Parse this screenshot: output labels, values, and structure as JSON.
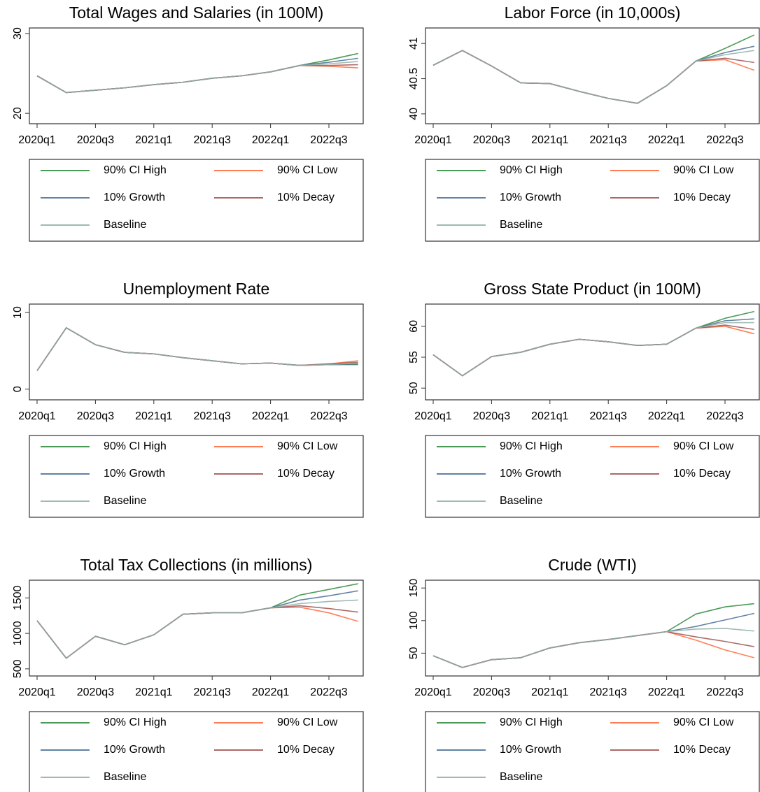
{
  "chart_data": [
    {
      "type": "line",
      "title": "Total Wages and Salaries (in 100M)",
      "categories": [
        "2020q1",
        null,
        "2020q3",
        null,
        "2021q1",
        null,
        "2021q3",
        null,
        "2022q1",
        null,
        "2022q3",
        null
      ],
      "ylim": [
        18.7,
        30.7
      ],
      "yticks": [
        20,
        30
      ],
      "series": [
        {
          "name": "90% CI High",
          "color": "#2e8b3c",
          "values": [
            24.7,
            22.6,
            22.9,
            23.2,
            23.6,
            23.9,
            24.4,
            24.7,
            25.2,
            26.0,
            26.7,
            27.5
          ]
        },
        {
          "name": "90% CI Low",
          "color": "#ff6a3d",
          "values": [
            24.7,
            22.6,
            22.9,
            23.2,
            23.6,
            23.9,
            24.4,
            24.7,
            25.2,
            26.0,
            25.9,
            25.7
          ]
        },
        {
          "name": "10% Growth",
          "color": "#4a6f94",
          "values": [
            24.7,
            22.6,
            22.9,
            23.2,
            23.6,
            23.9,
            24.4,
            24.7,
            25.2,
            26.0,
            26.4,
            26.9
          ]
        },
        {
          "name": "10% Decay",
          "color": "#a0524f",
          "values": [
            24.7,
            22.6,
            22.9,
            23.2,
            23.6,
            23.9,
            24.4,
            24.7,
            25.2,
            26.0,
            26.0,
            26.1
          ]
        },
        {
          "name": "Baseline",
          "color": "#8fb0a8",
          "values": [
            24.7,
            22.6,
            22.9,
            23.2,
            23.6,
            23.9,
            24.4,
            24.7,
            25.2,
            26.0,
            26.2,
            26.5
          ]
        }
      ]
    },
    {
      "type": "line",
      "title": "Labor Force (in 10,000s)",
      "categories": [
        "2020q1",
        null,
        "2020q3",
        null,
        "2021q1",
        null,
        "2021q3",
        null,
        "2022q1",
        null,
        "2022q3",
        null
      ],
      "ylim": [
        39.86,
        41.22
      ],
      "yticks": [
        40,
        40.5,
        41
      ],
      "series": [
        {
          "name": "90% CI High",
          "color": "#2e8b3c",
          "values": [
            40.69,
            40.9,
            40.68,
            40.44,
            40.43,
            40.32,
            40.22,
            40.15,
            40.4,
            40.75,
            40.93,
            41.12
          ]
        },
        {
          "name": "90% CI Low",
          "color": "#ff6a3d",
          "values": [
            40.69,
            40.9,
            40.68,
            40.44,
            40.43,
            40.32,
            40.22,
            40.15,
            40.4,
            40.75,
            40.77,
            40.62
          ]
        },
        {
          "name": "10% Growth",
          "color": "#4a6f94",
          "values": [
            40.69,
            40.9,
            40.68,
            40.44,
            40.43,
            40.32,
            40.22,
            40.15,
            40.4,
            40.75,
            40.87,
            40.96
          ]
        },
        {
          "name": "10% Decay",
          "color": "#a0524f",
          "values": [
            40.69,
            40.9,
            40.68,
            40.44,
            40.43,
            40.32,
            40.22,
            40.15,
            40.4,
            40.75,
            40.79,
            40.73
          ]
        },
        {
          "name": "Baseline",
          "color": "#8fb0a8",
          "values": [
            40.69,
            40.9,
            40.68,
            40.44,
            40.43,
            40.32,
            40.22,
            40.15,
            40.4,
            40.75,
            40.84,
            40.9
          ]
        }
      ]
    },
    {
      "type": "line",
      "title": "Unemployment Rate",
      "categories": [
        "2020q1",
        null,
        "2020q3",
        null,
        "2021q1",
        null,
        "2021q3",
        null,
        "2022q1",
        null,
        "2022q3",
        null
      ],
      "ylim": [
        -1.4,
        11.1
      ],
      "yticks": [
        0,
        10
      ],
      "series": [
        {
          "name": "90% CI High",
          "color": "#2e8b3c",
          "values": [
            2.4,
            8.0,
            5.8,
            4.8,
            4.6,
            4.1,
            3.7,
            3.3,
            3.4,
            3.1,
            3.2,
            3.2
          ]
        },
        {
          "name": "90% CI Low",
          "color": "#ff6a3d",
          "values": [
            2.4,
            8.0,
            5.8,
            4.8,
            4.6,
            4.1,
            3.7,
            3.3,
            3.4,
            3.1,
            3.3,
            3.7
          ]
        },
        {
          "name": "10% Growth",
          "color": "#4a6f94",
          "values": [
            2.4,
            8.0,
            5.8,
            4.8,
            4.6,
            4.1,
            3.7,
            3.3,
            3.4,
            3.1,
            3.2,
            3.3
          ]
        },
        {
          "name": "10% Decay",
          "color": "#a0524f",
          "values": [
            2.4,
            8.0,
            5.8,
            4.8,
            4.6,
            4.1,
            3.7,
            3.3,
            3.4,
            3.1,
            3.3,
            3.5
          ]
        },
        {
          "name": "Baseline",
          "color": "#8fb0a8",
          "values": [
            2.4,
            8.0,
            5.8,
            4.8,
            4.6,
            4.1,
            3.7,
            3.3,
            3.4,
            3.1,
            3.2,
            3.4
          ]
        }
      ]
    },
    {
      "type": "line",
      "title": "Gross State Product (in 100M)",
      "categories": [
        "2020q1",
        null,
        "2020q3",
        null,
        "2021q1",
        null,
        "2021q3",
        null,
        "2022q1",
        null,
        "2022q3",
        null
      ],
      "ylim": [
        48.1,
        63.6
      ],
      "yticks": [
        50,
        55,
        60
      ],
      "series": [
        {
          "name": "90% CI High",
          "color": "#2e8b3c",
          "values": [
            55.4,
            52.0,
            55.1,
            55.8,
            57.1,
            57.9,
            57.5,
            56.9,
            57.1,
            59.7,
            61.3,
            62.4
          ]
        },
        {
          "name": "90% CI Low",
          "color": "#ff6a3d",
          "values": [
            55.4,
            52.0,
            55.1,
            55.8,
            57.1,
            57.9,
            57.5,
            56.9,
            57.1,
            59.7,
            60.0,
            58.8
          ]
        },
        {
          "name": "10% Growth",
          "color": "#4a6f94",
          "values": [
            55.4,
            52.0,
            55.1,
            55.8,
            57.1,
            57.9,
            57.5,
            56.9,
            57.1,
            59.7,
            60.9,
            61.2
          ]
        },
        {
          "name": "10% Decay",
          "color": "#a0524f",
          "values": [
            55.4,
            52.0,
            55.1,
            55.8,
            57.1,
            57.9,
            57.5,
            56.9,
            57.1,
            59.7,
            60.2,
            59.5
          ]
        },
        {
          "name": "Baseline",
          "color": "#8fb0a8",
          "values": [
            55.4,
            52.0,
            55.1,
            55.8,
            57.1,
            57.9,
            57.5,
            56.9,
            57.1,
            59.7,
            60.6,
            60.6
          ]
        }
      ]
    },
    {
      "type": "line",
      "title": "Total Tax Collections (in millions)",
      "categories": [
        "2020q1",
        null,
        "2020q3",
        null,
        "2021q1",
        null,
        "2021q3",
        null,
        "2022q1",
        null,
        "2022q3",
        null
      ],
      "ylim": [
        400,
        1750
      ],
      "yticks": [
        500,
        1000,
        1500
      ],
      "series": [
        {
          "name": "90% CI High",
          "color": "#2e8b3c",
          "values": [
            1180,
            650,
            960,
            840,
            980,
            1270,
            1290,
            1290,
            1360,
            1540,
            1620,
            1700
          ]
        },
        {
          "name": "90% CI Low",
          "color": "#ff6a3d",
          "values": [
            1180,
            650,
            960,
            840,
            980,
            1270,
            1290,
            1290,
            1360,
            1370,
            1290,
            1170
          ]
        },
        {
          "name": "10% Growth",
          "color": "#4a6f94",
          "values": [
            1180,
            650,
            960,
            840,
            980,
            1270,
            1290,
            1290,
            1360,
            1470,
            1530,
            1600
          ]
        },
        {
          "name": "10% Decay",
          "color": "#a0524f",
          "values": [
            1180,
            650,
            960,
            840,
            980,
            1270,
            1290,
            1290,
            1360,
            1390,
            1350,
            1300
          ]
        },
        {
          "name": "Baseline",
          "color": "#8fb0a8",
          "values": [
            1180,
            650,
            960,
            840,
            980,
            1270,
            1290,
            1290,
            1360,
            1420,
            1450,
            1470
          ]
        }
      ]
    },
    {
      "type": "line",
      "title": "Crude (WTI)",
      "categories": [
        "2020q1",
        null,
        "2020q3",
        null,
        "2021q1",
        null,
        "2021q3",
        null,
        "2022q1",
        null,
        "2022q3",
        null
      ],
      "ylim": [
        15,
        162
      ],
      "yticks": [
        50,
        100,
        150
      ],
      "series": [
        {
          "name": "90% CI High",
          "color": "#2e8b3c",
          "values": [
            46,
            28,
            40,
            43,
            58,
            66,
            71,
            77,
            83,
            110,
            121,
            126
          ]
        },
        {
          "name": "90% CI Low",
          "color": "#ff6a3d",
          "values": [
            46,
            28,
            40,
            43,
            58,
            66,
            71,
            77,
            83,
            70,
            55,
            43
          ]
        },
        {
          "name": "10% Growth",
          "color": "#4a6f94",
          "values": [
            46,
            28,
            40,
            43,
            58,
            66,
            71,
            77,
            83,
            91,
            101,
            111
          ]
        },
        {
          "name": "10% Decay",
          "color": "#a0524f",
          "values": [
            46,
            28,
            40,
            43,
            58,
            66,
            71,
            77,
            83,
            75,
            68,
            60
          ]
        },
        {
          "name": "Baseline",
          "color": "#8fb0a8",
          "values": [
            46,
            28,
            40,
            43,
            58,
            66,
            71,
            77,
            83,
            87,
            88,
            84
          ]
        }
      ]
    }
  ]
}
